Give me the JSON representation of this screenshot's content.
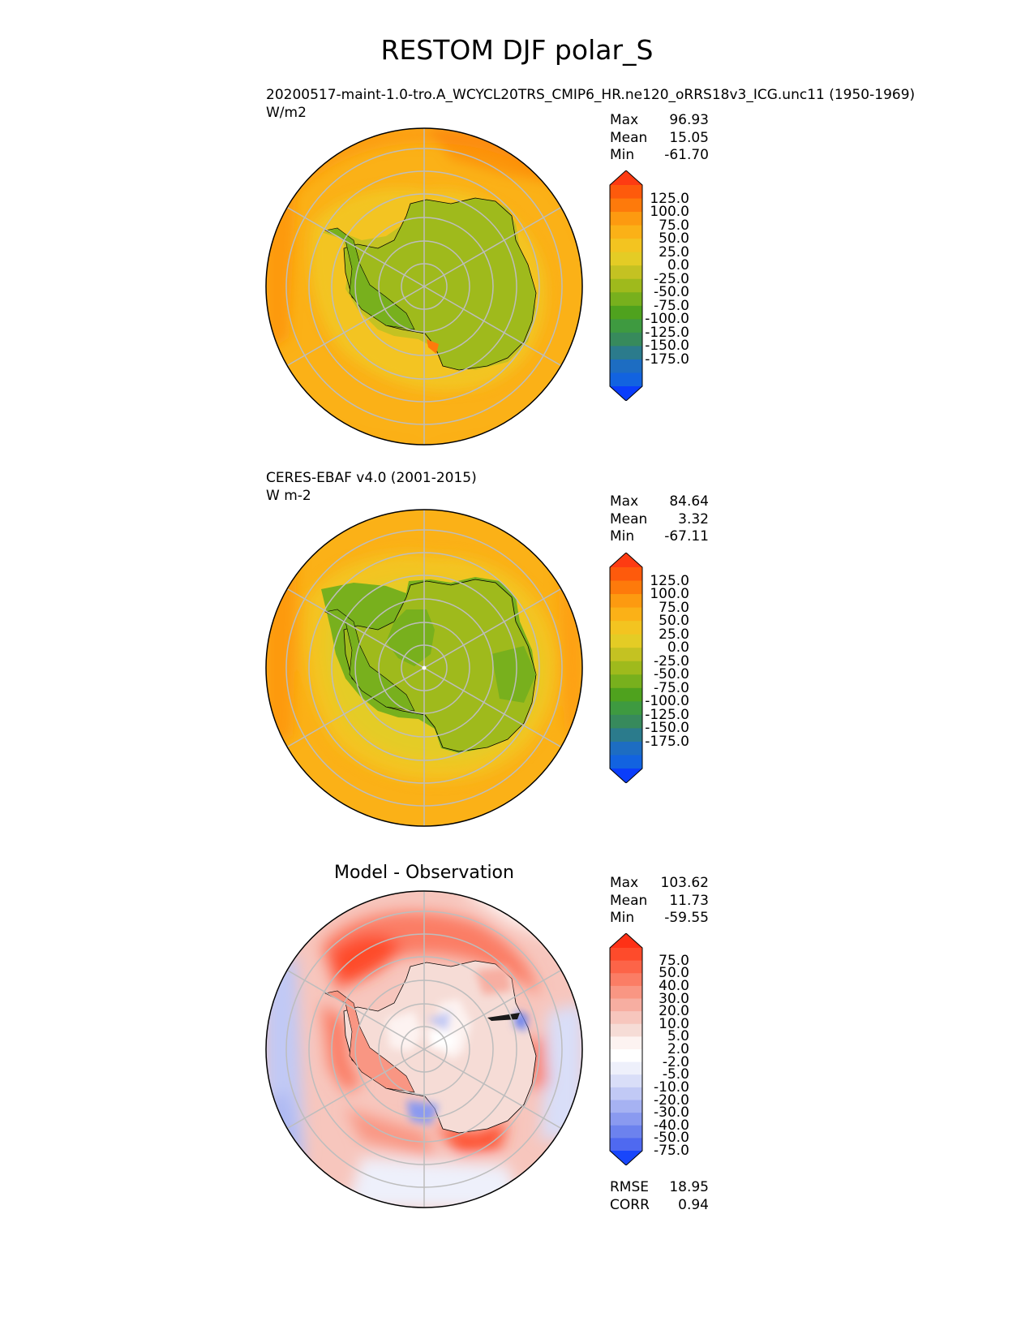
{
  "figure": {
    "title": "RESTOM DJF polar_S"
  },
  "panels": [
    {
      "id": "model",
      "title_line1": "20200517-maint-1.0-tro.A_WCYCL20TRS_CMIP6_HR.ne120_oRRS18v3_ICG.unc11 (1950-1969)",
      "units": "W/m2",
      "stats": {
        "max_label": "Max",
        "max": "96.93",
        "mean_label": "Mean",
        "mean": "15.05",
        "min_label": "Min",
        "min": "-61.70"
      }
    },
    {
      "id": "obs",
      "title_line1": "CERES-EBAF v4.0 (2001-2015)",
      "units": "W m-2",
      "stats": {
        "max_label": "Max",
        "max": "84.64",
        "mean_label": "Mean",
        "mean": "3.32",
        "min_label": "Min",
        "min": "-67.11"
      }
    },
    {
      "id": "diff",
      "title": "Model - Observation",
      "stats": {
        "max_label": "Max",
        "max": "103.62",
        "mean_label": "Mean",
        "mean": "11.73",
        "min_label": "Min",
        "min": "-59.55"
      },
      "metrics": {
        "rmse_label": "RMSE",
        "rmse": "18.95",
        "corr_label": "CORR",
        "corr": "0.94"
      }
    }
  ],
  "chart_data": [
    {
      "type": "heatmap",
      "projection": "south polar stereographic",
      "title": "20200517-maint-1.0-tro.A_WCYCL20TRS_CMIP6_HR.ne120_oRRS18v3_ICG.unc11 (1950-1969)",
      "units": "W/m2",
      "colorbar_levels": [
        "125.0",
        "100.0",
        "75.0",
        "50.0",
        "25.0",
        "0.0",
        "-25.0",
        "-50.0",
        "-75.0",
        "-100.0",
        "-125.0",
        "-150.0",
        "-175.0"
      ],
      "colorbar_colors": [
        "#fe3b12",
        "#fe5a0c",
        "#fe7a0b",
        "#fd9a10",
        "#fbb117",
        "#f3c420",
        "#e4cc25",
        "#c4c222",
        "#9fba1c",
        "#78b01d",
        "#4fa21e",
        "#3e9a40",
        "#378a5c",
        "#2b7b8c",
        "#1d6dc2",
        "#1263e0",
        "#0a3dfb"
      ],
      "extend": "both",
      "stats": {
        "max": 96.93,
        "mean": 15.05,
        "min": -61.7
      },
      "field_summary": {
        "antarctic_continent": "-50 to -25",
        "coastal_ocean": "0 to 25",
        "outer_ocean": "25 to 75"
      }
    },
    {
      "type": "heatmap",
      "projection": "south polar stereographic",
      "title": "CERES-EBAF v4.0 (2001-2015)",
      "units": "W m-2",
      "colorbar_levels": [
        "125.0",
        "100.0",
        "75.0",
        "50.0",
        "25.0",
        "0.0",
        "-25.0",
        "-50.0",
        "-75.0",
        "-100.0",
        "-125.0",
        "-150.0",
        "-175.0"
      ],
      "colorbar_colors": [
        "#fe3b12",
        "#fe5a0c",
        "#fe7a0b",
        "#fd9a10",
        "#fbb117",
        "#f3c420",
        "#e4cc25",
        "#c4c222",
        "#9fba1c",
        "#78b01d",
        "#4fa21e",
        "#3e9a40",
        "#378a5c",
        "#2b7b8c",
        "#1d6dc2",
        "#1263e0",
        "#0a3dfb"
      ],
      "extend": "both",
      "stats": {
        "max": 84.64,
        "mean": 3.32,
        "min": -67.11
      },
      "field_summary": {
        "antarctic_continent": "-75 to -50",
        "coastal_ocean": "-25 to 0",
        "outer_ocean": "25 to 50"
      }
    },
    {
      "type": "heatmap",
      "projection": "south polar stereographic",
      "title": "Model - Observation",
      "colorbar_levels": [
        "75.0",
        "50.0",
        "40.0",
        "30.0",
        "20.0",
        "10.0",
        "5.0",
        "2.0",
        "-2.0",
        "-5.0",
        "-10.0",
        "-20.0",
        "-30.0",
        "-40.0",
        "-50.0",
        "-75.0"
      ],
      "colorbar_colors": [
        "#fe3116",
        "#fe4b2b",
        "#fd6448",
        "#fb7d65",
        "#f99683",
        "#f7aea1",
        "#f7c6bd",
        "#f6dcd6",
        "#fdf3f1",
        "#ffffff",
        "#eef0fb",
        "#d9def8",
        "#c1c9f5",
        "#a6b2f2",
        "#8a9af0",
        "#6c82ee",
        "#4f69f0",
        "#1846fb"
      ],
      "extend": "both",
      "stats": {
        "max": 103.62,
        "mean": 11.73,
        "min": -59.55
      },
      "metrics": {
        "rmse": 18.95,
        "corr": 0.94
      },
      "field_summary": {
        "continent": "5 to 30",
        "coastal_ocean_peaks": "40 to 75",
        "outer_ocean": "-10 to 10"
      }
    }
  ]
}
